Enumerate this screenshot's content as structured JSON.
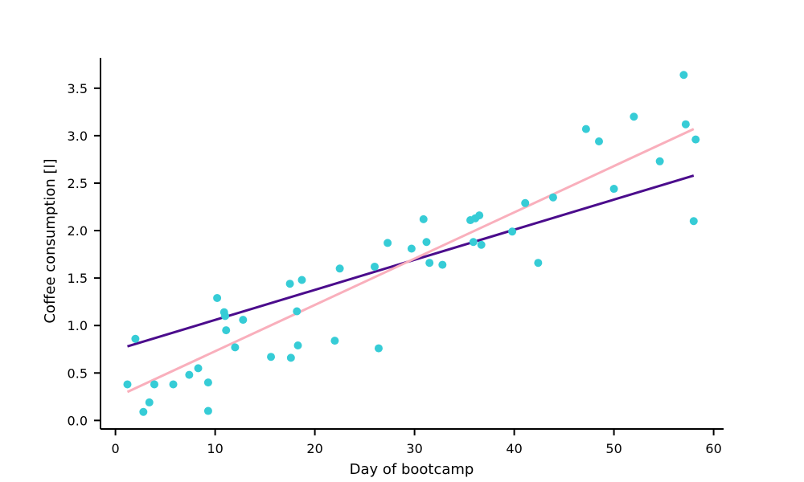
{
  "chart_data": {
    "type": "scatter",
    "title": "",
    "xlabel": "Day of bootcamp",
    "ylabel": "Coffee consumption [l]",
    "xlim": [
      -1.5,
      61
    ],
    "ylim": [
      -0.09,
      3.82
    ],
    "xticks": [
      0,
      10,
      20,
      30,
      40,
      50,
      60
    ],
    "yticks": [
      0.0,
      0.5,
      1.0,
      1.5,
      2.0,
      2.5,
      3.0,
      3.5
    ],
    "xtick_labels": [
      "0",
      "10",
      "20",
      "30",
      "40",
      "50",
      "60"
    ],
    "ytick_labels": [
      "0.0",
      "0.5",
      "1.0",
      "1.5",
      "2.0",
      "2.5",
      "3.0",
      "3.5"
    ],
    "grid": false,
    "legend": "none",
    "point_color": "#36CCD6",
    "points": [
      {
        "x": 1.2,
        "y": 0.38
      },
      {
        "x": 2.0,
        "y": 0.86
      },
      {
        "x": 2.8,
        "y": 0.09
      },
      {
        "x": 3.4,
        "y": 0.19
      },
      {
        "x": 3.9,
        "y": 0.38
      },
      {
        "x": 5.8,
        "y": 0.38
      },
      {
        "x": 7.4,
        "y": 0.48
      },
      {
        "x": 8.3,
        "y": 0.55
      },
      {
        "x": 9.3,
        "y": 0.4
      },
      {
        "x": 9.3,
        "y": 0.1
      },
      {
        "x": 10.2,
        "y": 1.29
      },
      {
        "x": 10.9,
        "y": 1.14
      },
      {
        "x": 11.0,
        "y": 1.1
      },
      {
        "x": 11.1,
        "y": 0.95
      },
      {
        "x": 12.0,
        "y": 0.77
      },
      {
        "x": 12.8,
        "y": 1.06
      },
      {
        "x": 15.6,
        "y": 0.67
      },
      {
        "x": 17.5,
        "y": 1.44
      },
      {
        "x": 17.6,
        "y": 0.66
      },
      {
        "x": 18.2,
        "y": 1.15
      },
      {
        "x": 18.3,
        "y": 0.79
      },
      {
        "x": 18.7,
        "y": 1.48
      },
      {
        "x": 22.0,
        "y": 0.84
      },
      {
        "x": 22.5,
        "y": 1.6
      },
      {
        "x": 26.0,
        "y": 1.62
      },
      {
        "x": 26.4,
        "y": 0.76
      },
      {
        "x": 27.3,
        "y": 1.87
      },
      {
        "x": 29.7,
        "y": 1.81
      },
      {
        "x": 30.9,
        "y": 2.12
      },
      {
        "x": 31.2,
        "y": 1.88
      },
      {
        "x": 31.5,
        "y": 1.66
      },
      {
        "x": 32.8,
        "y": 1.64
      },
      {
        "x": 35.6,
        "y": 2.11
      },
      {
        "x": 35.9,
        "y": 1.88
      },
      {
        "x": 36.1,
        "y": 2.13
      },
      {
        "x": 36.5,
        "y": 2.16
      },
      {
        "x": 36.7,
        "y": 1.85
      },
      {
        "x": 39.8,
        "y": 1.99
      },
      {
        "x": 41.1,
        "y": 2.29
      },
      {
        "x": 42.4,
        "y": 1.66
      },
      {
        "x": 43.9,
        "y": 2.35
      },
      {
        "x": 47.2,
        "y": 3.07
      },
      {
        "x": 48.5,
        "y": 2.94
      },
      {
        "x": 50.0,
        "y": 2.44
      },
      {
        "x": 52.0,
        "y": 3.2
      },
      {
        "x": 54.6,
        "y": 2.73
      },
      {
        "x": 57.0,
        "y": 3.64
      },
      {
        "x": 57.2,
        "y": 3.12
      },
      {
        "x": 58.0,
        "y": 2.1
      },
      {
        "x": 58.2,
        "y": 2.96
      }
    ],
    "lines": [
      {
        "color": "#4B0C8C",
        "x": [
          1.2,
          58.0
        ],
        "y": [
          0.78,
          2.58
        ]
      },
      {
        "color": "#F9AFBC",
        "x": [
          1.2,
          58.0
        ],
        "y": [
          0.3,
          3.07
        ]
      }
    ]
  }
}
